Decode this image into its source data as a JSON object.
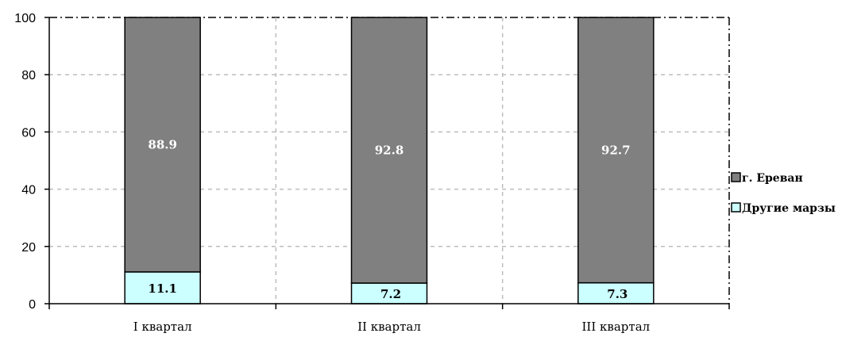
{
  "chart_data": {
    "type": "bar",
    "stacked": true,
    "categories": [
      "I квартал",
      "II квартал",
      "III квартал"
    ],
    "series": [
      {
        "name": "Другие марзы",
        "values": [
          11.1,
          7.2,
          7.3
        ],
        "color": "#ccffff",
        "label_color": "#000000"
      },
      {
        "name": "г. Ереван",
        "values": [
          88.9,
          92.8,
          92.7
        ],
        "color": "#808080",
        "label_color": "#ffffff"
      }
    ],
    "legend_order": [
      "г. Ереван",
      "Другие марзы"
    ],
    "ylim": [
      0,
      100
    ],
    "yticks": [
      0,
      20,
      40,
      60,
      80,
      100
    ],
    "grid": true,
    "legend_position": "right",
    "title": "",
    "xlabel": "",
    "ylabel": ""
  }
}
